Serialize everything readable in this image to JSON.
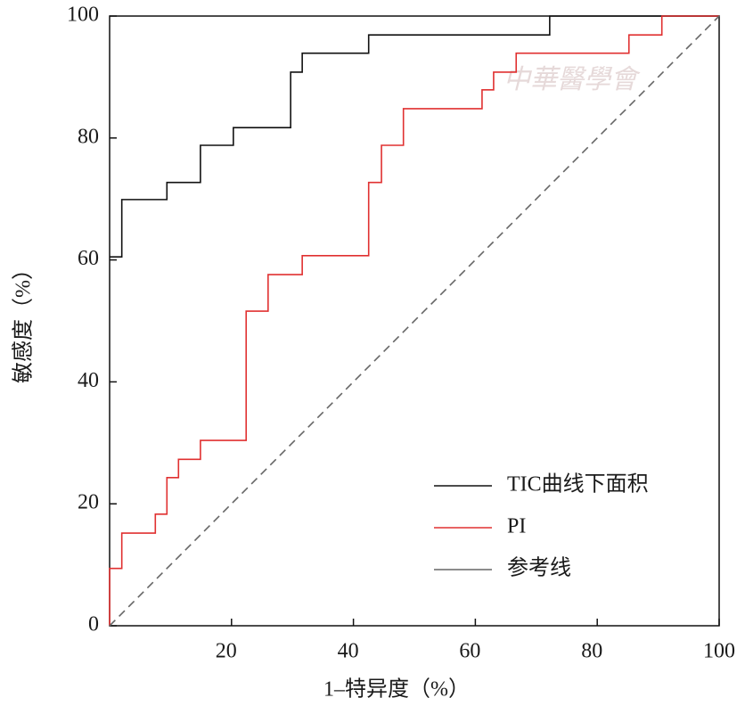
{
  "chart_data": {
    "type": "line",
    "x_label": "1–特异度（%）",
    "y_label": "敏感度（%）",
    "watermark": "中華醫學會",
    "xlim": [
      0,
      100
    ],
    "ylim": [
      0,
      100
    ],
    "xticks": [
      20,
      40,
      60,
      80,
      100
    ],
    "yticks": [
      0,
      20,
      40,
      60,
      80,
      100
    ],
    "legend": "lower right",
    "series": [
      {
        "name": "TIC曲线下面积",
        "color": "#111111",
        "style": "solid",
        "x": [
          0,
          2,
          2,
          9.4,
          9.4,
          14.9,
          14.9,
          20.3,
          20.3,
          29.7,
          29.7,
          31.6,
          31.6,
          42.5,
          42.5,
          72.2,
          72.2,
          100
        ],
        "values": [
          60.5,
          60.5,
          69.9,
          69.9,
          72.7,
          72.7,
          78.8,
          78.8,
          81.7,
          81.7,
          90.8,
          90.8,
          93.9,
          93.9,
          96.9,
          96.9,
          100,
          100
        ]
      },
      {
        "name": "PI",
        "color": "#e03030",
        "style": "solid",
        "x": [
          0,
          0,
          2,
          2,
          7.5,
          7.5,
          9.4,
          9.4,
          11.3,
          11.3,
          14.9,
          14.9,
          22.4,
          22.4,
          26,
          26,
          31.6,
          31.6,
          42.5,
          42.5,
          44.6,
          44.6,
          48.2,
          48.2,
          61.1,
          61.1,
          63,
          63,
          66.7,
          66.7,
          85.2,
          85.2,
          90.6,
          90.6,
          100
        ],
        "values": [
          0,
          9.4,
          9.4,
          15.2,
          15.2,
          18.3,
          18.3,
          24.3,
          24.3,
          27.3,
          27.3,
          30.4,
          30.4,
          51.6,
          51.6,
          57.6,
          57.6,
          60.7,
          60.7,
          72.7,
          72.7,
          78.8,
          78.8,
          84.8,
          84.8,
          87.9,
          87.9,
          90.8,
          90.8,
          93.9,
          93.9,
          96.9,
          96.9,
          100,
          100
        ]
      },
      {
        "name": "参考线",
        "color": "#666666",
        "style": "dashed",
        "x": [
          0,
          100
        ],
        "values": [
          0,
          100
        ]
      }
    ]
  }
}
